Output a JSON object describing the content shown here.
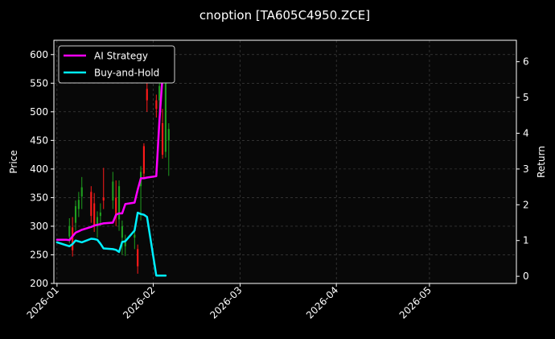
{
  "chart_data": {
    "type": "line",
    "title": "cnoption [TA605C4950.ZCE]",
    "xlabel": "",
    "ylabel": "Price",
    "y2label": "Return",
    "grid": true,
    "legend_position": "top-left",
    "xlim": [
      "2025-12-31",
      "2026-05-29"
    ],
    "ylim": [
      200,
      625
    ],
    "y2lim": [
      -0.2,
      6.6
    ],
    "x_ticks": [
      "2026-01",
      "2026-02",
      "2026-03",
      "2026-04",
      "2026-05"
    ],
    "x_tick_dates": [
      "2026-01-01",
      "2026-02-01",
      "2026-03-01",
      "2026-04-01",
      "2026-05-01"
    ],
    "y_ticks": [
      200,
      250,
      300,
      350,
      400,
      450,
      500,
      550,
      600
    ],
    "y2_ticks": [
      0,
      1,
      2,
      3,
      4,
      5,
      6
    ],
    "colors": {
      "background": "#000000",
      "plot_background": "#080808",
      "axis": "#ffffff",
      "grid": "#4a4a4a",
      "candle_up": "#1f9e1f",
      "candle_down": "#ff1a1a"
    },
    "candles": [
      {
        "date": "2026-01-05",
        "open": 282,
        "high": 314,
        "low": 270,
        "close": 300
      },
      {
        "date": "2026-01-06",
        "open": 298,
        "high": 316,
        "low": 247,
        "close": 258
      },
      {
        "date": "2026-01-07",
        "open": 306,
        "high": 345,
        "low": 292,
        "close": 335
      },
      {
        "date": "2026-01-08",
        "open": 330,
        "high": 360,
        "low": 316,
        "close": 346
      },
      {
        "date": "2026-01-09",
        "open": 352,
        "high": 386,
        "low": 330,
        "close": 368
      },
      {
        "date": "2026-01-12",
        "open": 360,
        "high": 370,
        "low": 306,
        "close": 318
      },
      {
        "date": "2026-01-13",
        "open": 340,
        "high": 358,
        "low": 290,
        "close": 302
      },
      {
        "date": "2026-01-14",
        "open": 300,
        "high": 326,
        "low": 280,
        "close": 316
      },
      {
        "date": "2026-01-15",
        "open": 318,
        "high": 340,
        "low": 300,
        "close": 324
      },
      {
        "date": "2026-01-16",
        "open": 350,
        "high": 402,
        "low": 330,
        "close": 345
      },
      {
        "date": "2026-01-19",
        "open": 345,
        "high": 395,
        "low": 330,
        "close": 378
      },
      {
        "date": "2026-01-20",
        "open": 350,
        "high": 380,
        "low": 300,
        "close": 315
      },
      {
        "date": "2026-01-21",
        "open": 312,
        "high": 380,
        "low": 292,
        "close": 370
      },
      {
        "date": "2026-01-22",
        "open": 280,
        "high": 310,
        "low": 250,
        "close": 300
      },
      {
        "date": "2026-01-23",
        "open": 265,
        "high": 285,
        "low": 248,
        "close": 272
      },
      {
        "date": "2026-01-26",
        "open": 280,
        "high": 300,
        "low": 260,
        "close": 285
      },
      {
        "date": "2026-01-27",
        "open": 260,
        "high": 268,
        "low": 217,
        "close": 230
      },
      {
        "date": "2026-01-28",
        "open": 370,
        "high": 405,
        "low": 310,
        "close": 395
      },
      {
        "date": "2026-01-29",
        "open": 440,
        "high": 445,
        "low": 385,
        "close": 392
      },
      {
        "date": "2026-01-30",
        "open": 540,
        "high": 595,
        "low": 500,
        "close": 520
      },
      {
        "date": "2026-02-02",
        "open": 520,
        "high": 530,
        "low": 490,
        "close": 505
      },
      {
        "date": "2026-02-03",
        "open": 520,
        "high": 560,
        "low": 470,
        "close": 545
      },
      {
        "date": "2026-02-04",
        "open": 480,
        "high": 505,
        "low": 418,
        "close": 425
      },
      {
        "date": "2026-02-05",
        "open": 430,
        "high": 595,
        "low": 420,
        "close": 590
      },
      {
        "date": "2026-02-06",
        "open": 450,
        "high": 480,
        "low": 388,
        "close": 470
      }
    ],
    "series": [
      {
        "name": "AI Strategy",
        "color": "#ff00ff",
        "axis": "right",
        "x": [
          "2026-01-01",
          "2026-01-04",
          "2026-01-05",
          "2026-01-06",
          "2026-01-07",
          "2026-01-08",
          "2026-01-09",
          "2026-01-12",
          "2026-01-13",
          "2026-01-14",
          "2026-01-15",
          "2026-01-16",
          "2026-01-19",
          "2026-01-20",
          "2026-01-21",
          "2026-01-22",
          "2026-01-23",
          "2026-01-26",
          "2026-01-27",
          "2026-01-28",
          "2026-01-29",
          "2026-01-30",
          "2026-02-02",
          "2026-02-03",
          "2026-02-04",
          "2026-02-05"
        ],
        "values": [
          1.02,
          1.02,
          1.01,
          1.12,
          1.22,
          1.26,
          1.3,
          1.38,
          1.42,
          1.44,
          1.46,
          1.48,
          1.5,
          1.72,
          1.76,
          1.76,
          2.02,
          2.06,
          2.42,
          2.74,
          2.74,
          2.76,
          2.8,
          4.35,
          5.6,
          6.05
        ]
      },
      {
        "name": "Buy-and-Hold",
        "color": "#00f0ff",
        "axis": "right",
        "x": [
          "2026-01-01",
          "2026-01-05",
          "2026-01-06",
          "2026-01-07",
          "2026-01-09",
          "2026-01-12",
          "2026-01-13",
          "2026-01-14",
          "2026-01-15",
          "2026-01-16",
          "2026-01-19",
          "2026-01-20",
          "2026-01-21",
          "2026-01-22",
          "2026-01-23",
          "2026-01-26",
          "2026-01-27",
          "2026-01-28",
          "2026-01-29",
          "2026-01-30",
          "2026-02-02",
          "2026-02-03",
          "2026-02-04",
          "2026-02-05"
        ],
        "values": [
          0.95,
          0.84,
          0.9,
          1.0,
          0.95,
          1.05,
          1.04,
          1.02,
          0.91,
          0.78,
          0.76,
          0.74,
          0.68,
          0.96,
          0.98,
          1.28,
          1.78,
          1.74,
          1.72,
          1.66,
          0.02,
          0.02,
          0.02,
          0.02
        ]
      }
    ]
  }
}
